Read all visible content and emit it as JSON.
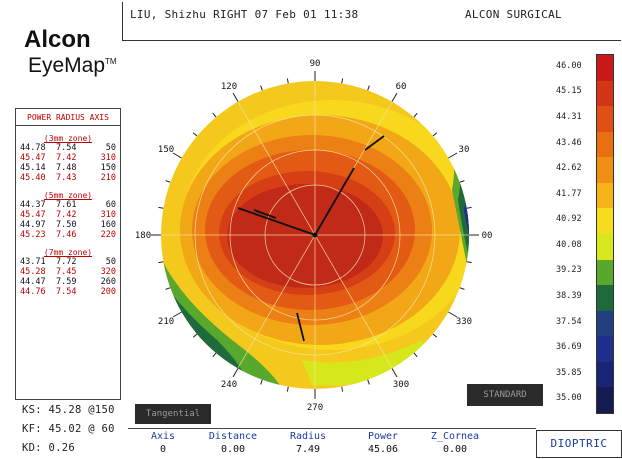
{
  "header": {
    "patient_line": "LIU, Shizhu RIGHT 07 Feb 01 11:38",
    "company": "ALCON SURGICAL"
  },
  "logo": {
    "line1": "Alcon",
    "line2": "EyeMap",
    "tm": "TM"
  },
  "power_radius_axis": {
    "title": "POWER RADIUS AXIS",
    "zones": [
      {
        "label": "3mm zone",
        "rows": [
          {
            "power": "44.78",
            "radius": "7.54",
            "axis": "50",
            "color": "#111111"
          },
          {
            "power": "45.47",
            "radius": "7.42",
            "axis": "310",
            "color": "#c40000"
          },
          {
            "power": "45.14",
            "radius": "7.48",
            "axis": "150",
            "color": "#111111"
          },
          {
            "power": "45.40",
            "radius": "7.43",
            "axis": "210",
            "color": "#c40000"
          }
        ]
      },
      {
        "label": "5mm zone",
        "rows": [
          {
            "power": "44.37",
            "radius": "7.61",
            "axis": "60",
            "color": "#111111"
          },
          {
            "power": "45.47",
            "radius": "7.42",
            "axis": "310",
            "color": "#c40000"
          },
          {
            "power": "44.97",
            "radius": "7.50",
            "axis": "160",
            "color": "#111111"
          },
          {
            "power": "45.23",
            "radius": "7.46",
            "axis": "220",
            "color": "#c40000"
          }
        ]
      },
      {
        "label": "7mm zone",
        "rows": [
          {
            "power": "43.71",
            "radius": "7.72",
            "axis": "50",
            "color": "#111111"
          },
          {
            "power": "45.28",
            "radius": "7.45",
            "axis": "320",
            "color": "#c40000"
          },
          {
            "power": "44.47",
            "radius": "7.59",
            "axis": "260",
            "color": "#111111"
          },
          {
            "power": "44.76",
            "radius": "7.54",
            "axis": "200",
            "color": "#c40000"
          }
        ]
      }
    ]
  },
  "axis_labels": [
    "90",
    "60",
    "30",
    "00",
    "330",
    "300",
    "270",
    "240",
    "210",
    "180",
    "150",
    "120"
  ],
  "scale": [
    {
      "value": "46.00",
      "color": "#c81818"
    },
    {
      "value": "45.15",
      "color": "#d43516"
    },
    {
      "value": "44.31",
      "color": "#e04f14"
    },
    {
      "value": "43.46",
      "color": "#ea6e12"
    },
    {
      "value": "42.62",
      "color": "#f28e14"
    },
    {
      "value": "41.77",
      "color": "#f7b418"
    },
    {
      "value": "40.92",
      "color": "#f6dc1c"
    },
    {
      "value": "40.08",
      "color": "#d6e81c"
    },
    {
      "value": "39.23",
      "color": "#58a82e"
    },
    {
      "value": "38.39",
      "color": "#1e6a3a"
    },
    {
      "value": "37.54",
      "color": "#243e82"
    },
    {
      "value": "36.69",
      "color": "#1e2f8e"
    },
    {
      "value": "35.85",
      "color": "#1a2476"
    },
    {
      "value": "35.00",
      "color": "#141a52"
    }
  ],
  "keratometry": {
    "ks": "KS: 45.28 @150",
    "kf": "KF: 45.02 @ 60",
    "kd": "KD: 0.26"
  },
  "buttons": {
    "tangential": "Tangential",
    "standard": "STANDARD",
    "dioptric": "DIOPTRIC"
  },
  "readout": [
    {
      "label": "Axis",
      "value": "0"
    },
    {
      "label": "Distance",
      "value": "0.00"
    },
    {
      "label": "Radius",
      "value": "7.49"
    },
    {
      "label": "Power",
      "value": "45.06"
    },
    {
      "label": "Z_Cornea",
      "value": "0.00"
    }
  ]
}
